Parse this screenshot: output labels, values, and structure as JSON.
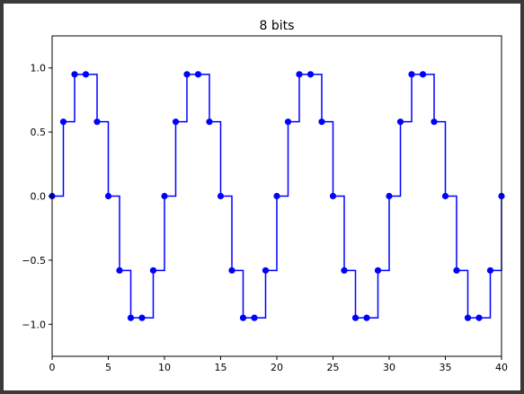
{
  "chart_data": {
    "type": "line",
    "title": "8 bits",
    "xlabel": "",
    "ylabel": "",
    "xlim": [
      0,
      40
    ],
    "ylim": [
      -1.25,
      1.25
    ],
    "x_ticks": [
      0,
      5,
      10,
      15,
      20,
      25,
      30,
      35,
      40
    ],
    "x_tick_labels": [
      "0",
      "5",
      "10",
      "15",
      "20",
      "25",
      "30",
      "35",
      "40"
    ],
    "y_ticks": [
      1.0,
      0.5,
      0.0,
      -0.5,
      -1.0
    ],
    "y_tick_labels": [
      "1.0",
      "0.5",
      "0.0",
      "−0.5",
      "−1.0"
    ],
    "grid": false,
    "line_style": "steps-post",
    "marker": "circle",
    "color": "#0000ff",
    "series": [
      {
        "x": [
          0,
          1,
          2,
          3,
          4,
          5,
          6,
          7,
          8,
          9,
          10,
          11,
          12,
          13,
          14,
          15,
          16,
          17,
          18,
          19,
          20,
          21,
          22,
          23,
          24,
          25,
          26,
          27,
          28,
          29,
          30,
          31,
          32,
          33,
          34,
          35,
          36,
          37,
          38,
          39,
          40
        ],
        "values": [
          0,
          0.58,
          0.95,
          0.95,
          0.58,
          0,
          -0.58,
          -0.95,
          -0.95,
          -0.58,
          0,
          0.58,
          0.95,
          0.95,
          0.58,
          0,
          -0.58,
          -0.95,
          -0.95,
          -0.58,
          0,
          0.58,
          0.95,
          0.95,
          0.58,
          0,
          -0.58,
          -0.95,
          -0.95,
          -0.58,
          0,
          0.58,
          0.95,
          0.95,
          0.58,
          0,
          -0.58,
          -0.95,
          -0.95,
          -0.58,
          0
        ]
      }
    ]
  }
}
